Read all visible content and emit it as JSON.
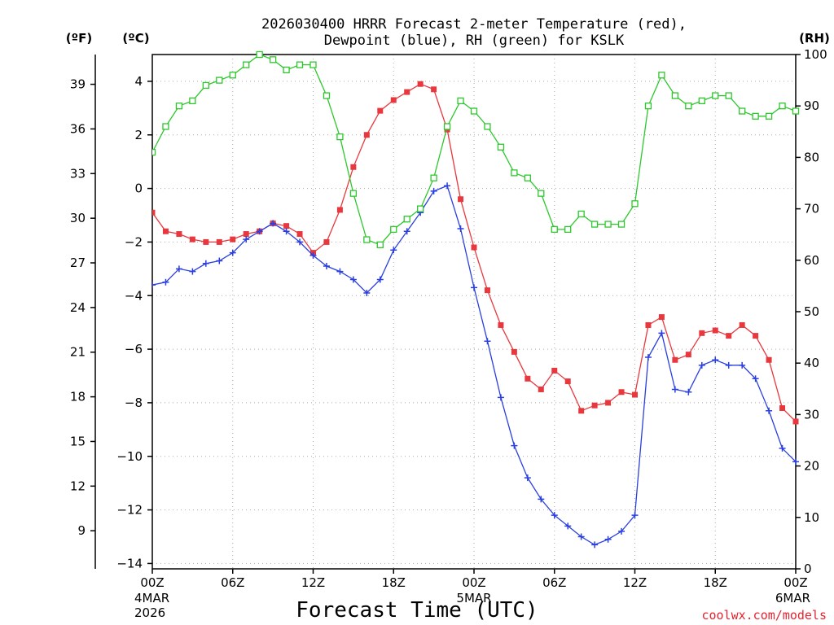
{
  "chart_data": {
    "type": "line",
    "title_line1": "2026030400 HRRR Forecast 2-meter Temperature (red),",
    "title_line2": "Dewpoint (blue), RH (green) for KSLK",
    "xlabel": "Forecast Time (UTC)",
    "credit": "coolwx.com/models",
    "left_outer_unit": "(ºF)",
    "left_inner_unit": "(ºC)",
    "right_unit": "(RH)",
    "x_range_hours": [
      0,
      48
    ],
    "celsius_range": [
      -14.2,
      5.0
    ],
    "rh_range": [
      0,
      100
    ],
    "grid": true,
    "x_ticks": [
      {
        "hour": 0,
        "label": "00Z",
        "date": "4MAR",
        "year": "2026"
      },
      {
        "hour": 6,
        "label": "06Z",
        "date": "",
        "year": ""
      },
      {
        "hour": 12,
        "label": "12Z",
        "date": "",
        "year": ""
      },
      {
        "hour": 18,
        "label": "18Z",
        "date": "",
        "year": ""
      },
      {
        "hour": 24,
        "label": "00Z",
        "date": "5MAR",
        "year": ""
      },
      {
        "hour": 30,
        "label": "06Z",
        "date": "",
        "year": ""
      },
      {
        "hour": 36,
        "label": "12Z",
        "date": "",
        "year": ""
      },
      {
        "hour": 42,
        "label": "18Z",
        "date": "",
        "year": ""
      },
      {
        "hour": 48,
        "label": "00Z",
        "date": "6MAR",
        "year": ""
      }
    ],
    "celsius_ticks": [
      4,
      2,
      0,
      -2,
      -4,
      -6,
      -8,
      -10,
      -12,
      -14
    ],
    "fahrenheit_ticks": [
      39,
      36,
      33,
      30,
      27,
      24,
      21,
      18,
      15,
      12,
      9
    ],
    "rh_ticks": [
      100,
      90,
      80,
      70,
      60,
      50,
      40,
      30,
      20,
      10,
      0
    ],
    "colors": {
      "temperature": "#e8383e",
      "dewpoint": "#2a3fe0",
      "rh": "#2cc82c"
    },
    "series": [
      {
        "name": "Temperature",
        "unit": "C",
        "values": [
          -0.9,
          -1.6,
          -1.7,
          -1.9,
          -2.0,
          -2.0,
          -1.9,
          -1.7,
          -1.6,
          -1.3,
          -1.4,
          -1.7,
          -2.4,
          -2.0,
          -0.8,
          0.8,
          2.0,
          2.9,
          3.3,
          3.6,
          3.9,
          3.7,
          2.2,
          -0.4,
          -2.2,
          -3.8,
          -5.1,
          -6.1,
          -7.1,
          -7.5,
          -6.8,
          -7.2,
          -8.3,
          -8.1,
          -8.0,
          -7.6,
          -7.7,
          -5.1,
          -4.8,
          -6.4,
          -6.2,
          -5.4,
          -5.3,
          -5.5,
          -5.1,
          -5.5,
          -6.4,
          -8.2,
          -8.7
        ]
      },
      {
        "name": "Dewpoint",
        "unit": "C",
        "values": [
          -3.6,
          -3.5,
          -3.0,
          -3.1,
          -2.8,
          -2.7,
          -2.4,
          -1.9,
          -1.6,
          -1.3,
          -1.6,
          -2.0,
          -2.5,
          -2.9,
          -3.1,
          -3.4,
          -3.9,
          -3.4,
          -2.3,
          -1.6,
          -0.9,
          -0.1,
          0.1,
          -1.5,
          -3.7,
          -5.7,
          -7.8,
          -9.6,
          -10.8,
          -11.6,
          -12.2,
          -12.6,
          -13.0,
          -13.3,
          -13.1,
          -12.8,
          -12.2,
          -6.3,
          -5.4,
          -7.5,
          -7.6,
          -6.6,
          -6.4,
          -6.6,
          -6.6,
          -7.1,
          -8.3,
          -9.7,
          -10.2
        ]
      },
      {
        "name": "RH",
        "unit": "%",
        "values": [
          81,
          86,
          90,
          91,
          94,
          95,
          96,
          98,
          100,
          99,
          97,
          98,
          98,
          92,
          84,
          73,
          64,
          63,
          66,
          68,
          70,
          76,
          86,
          91,
          89,
          86,
          82,
          77,
          76,
          73,
          66,
          66,
          69,
          67,
          67,
          67,
          71,
          90,
          96,
          92,
          90,
          91,
          92,
          92,
          89,
          88,
          88,
          90,
          89
        ]
      }
    ]
  }
}
